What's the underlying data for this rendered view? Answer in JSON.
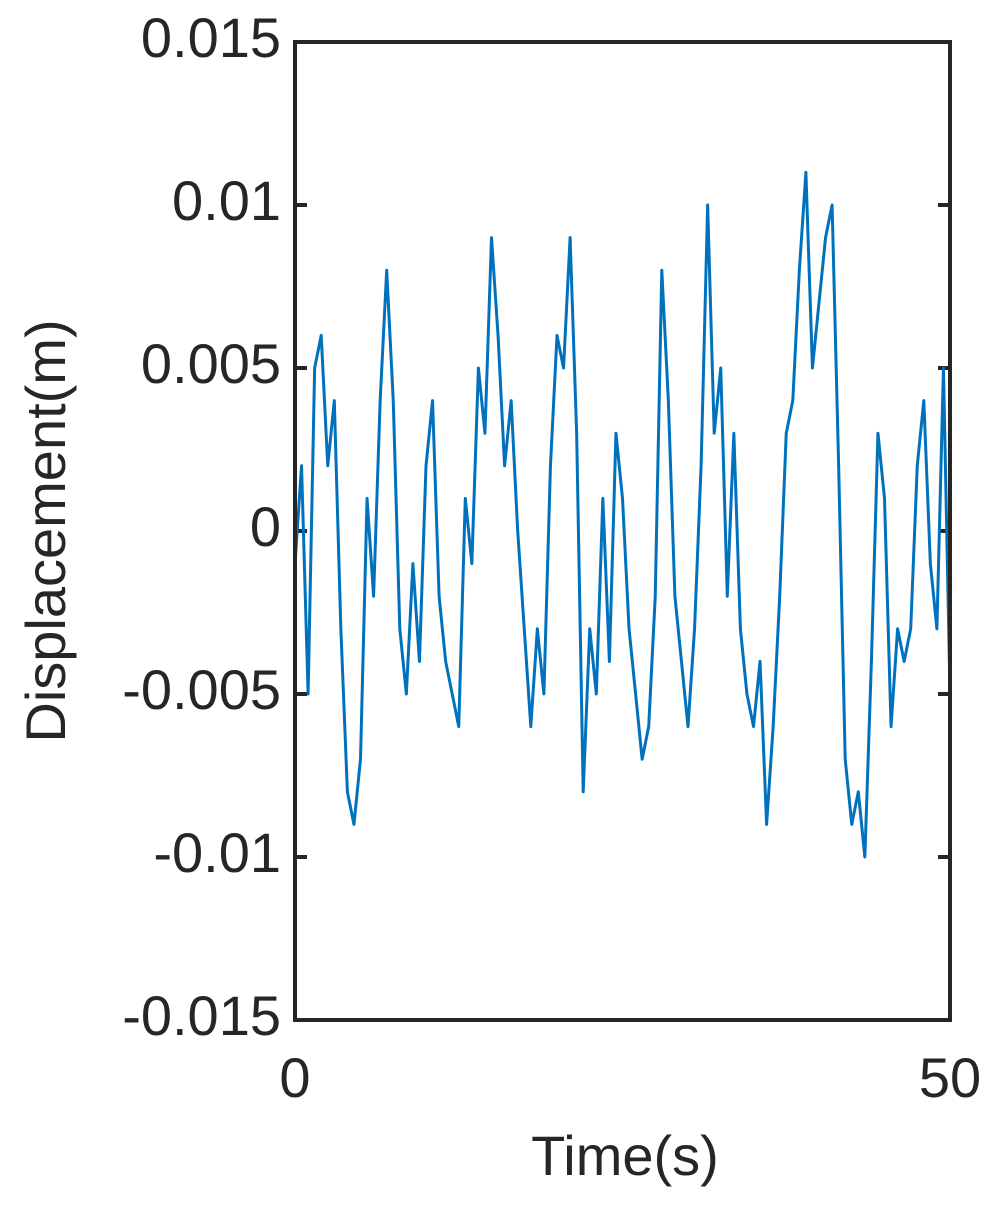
{
  "chart_data": {
    "type": "line",
    "xlabel": "Time(s)",
    "ylabel": "Displacement(m)",
    "xlim": [
      0,
      50
    ],
    "xticks": [
      0,
      50
    ],
    "ylim": [
      -0.015,
      0.015
    ],
    "yticks": [
      0.015,
      0.01,
      0.005,
      0,
      -0.005,
      -0.01,
      -0.015
    ],
    "grid": false,
    "x": [
      0,
      0.5,
      1,
      1.5,
      2,
      2.5,
      3,
      3.5,
      4,
      4.5,
      5,
      5.5,
      6,
      6.5,
      7,
      7.5,
      8,
      8.5,
      9,
      9.5,
      10,
      10.5,
      11,
      11.5,
      12,
      12.5,
      13,
      13.5,
      14,
      14.5,
      15,
      15.5,
      16,
      16.5,
      17,
      17.5,
      18,
      18.5,
      19,
      19.5,
      20,
      20.5,
      21,
      21.5,
      22,
      22.5,
      23,
      23.5,
      24,
      24.5,
      25,
      25.5,
      26,
      26.5,
      27,
      27.5,
      28,
      28.5,
      29,
      29.5,
      30,
      30.5,
      31,
      31.5,
      32,
      32.5,
      33,
      33.5,
      34,
      34.5,
      35,
      35.5,
      36,
      36.5,
      37,
      37.5,
      38,
      38.5,
      39,
      39.5,
      40,
      40.5,
      41,
      41.5,
      42,
      42.5,
      43,
      43.5,
      44,
      44.5,
      45,
      45.5,
      46,
      46.5,
      47,
      47.5,
      48,
      48.5,
      49,
      49.5,
      50
    ],
    "series": [
      {
        "name": "Displacement",
        "color": "#0072bd",
        "values": [
          -0.001,
          0.002,
          -0.005,
          0.005,
          0.006,
          0.002,
          0.004,
          -0.003,
          -0.008,
          -0.009,
          -0.007,
          0.001,
          -0.002,
          0.004,
          0.008,
          0.004,
          -0.003,
          -0.005,
          -0.001,
          -0.004,
          0.002,
          0.004,
          -0.002,
          -0.004,
          -0.005,
          -0.006,
          0.001,
          -0.001,
          0.005,
          0.003,
          0.009,
          0.006,
          0.002,
          0.004,
          0.0,
          -0.003,
          -0.006,
          -0.003,
          -0.005,
          0.002,
          0.006,
          0.005,
          0.009,
          0.003,
          -0.008,
          -0.003,
          -0.005,
          0.001,
          -0.004,
          0.003,
          0.001,
          -0.003,
          -0.005,
          -0.007,
          -0.006,
          -0.002,
          0.008,
          0.004,
          -0.002,
          -0.004,
          -0.006,
          -0.003,
          0.002,
          0.01,
          0.003,
          0.005,
          -0.002,
          0.003,
          -0.003,
          -0.005,
          -0.006,
          -0.004,
          -0.009,
          -0.006,
          -0.002,
          0.003,
          0.004,
          0.008,
          0.011,
          0.005,
          0.007,
          0.009,
          0.01,
          0.002,
          -0.007,
          -0.009,
          -0.008,
          -0.01,
          -0.004,
          0.003,
          0.001,
          -0.006,
          -0.003,
          -0.004,
          -0.003,
          0.002,
          0.004,
          -0.001,
          -0.003,
          0.005,
          -0.005
        ]
      }
    ]
  }
}
